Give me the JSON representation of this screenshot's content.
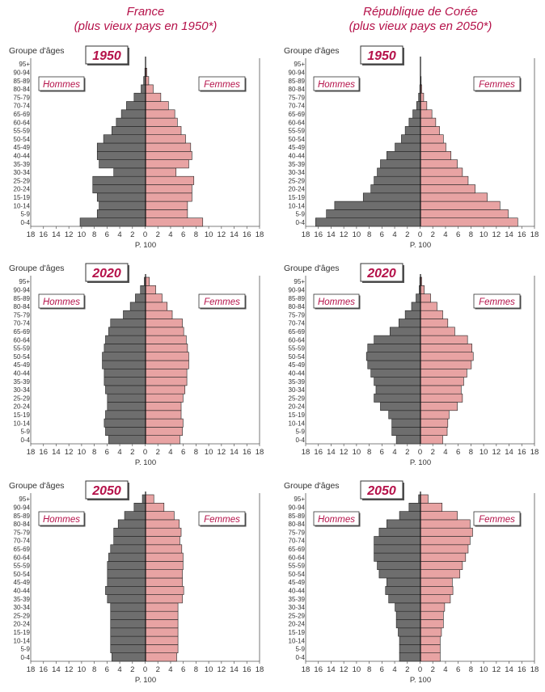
{
  "columns": [
    {
      "title": "France",
      "subtitle": "(plus vieux pays en 1950*)"
    },
    {
      "title": "République de Corée",
      "subtitle": "(plus vieux pays en 2050*)"
    }
  ],
  "labels": {
    "age_group": "Groupe d'âges",
    "men": "Hommes",
    "women": "Femmes",
    "unit": "P. 100"
  },
  "colors": {
    "men": "#6e6e6e",
    "women": "#e8a3a3",
    "accent": "#b5124a"
  },
  "chart_data": [
    {
      "type": "bar",
      "country": "France",
      "year": "1950",
      "categories": [
        "0-4",
        "5-9",
        "10-14",
        "15-19",
        "20-24",
        "25-29",
        "30-34",
        "35-39",
        "40-44",
        "45-49",
        "50-54",
        "55-59",
        "60-64",
        "65-69",
        "70-74",
        "75-79",
        "80-84",
        "85-89",
        "90-94",
        "95+"
      ],
      "series": [
        {
          "name": "Hommes",
          "values": [
            10.3,
            7.6,
            7.3,
            7.6,
            8.3,
            8.3,
            5.0,
            7.3,
            7.6,
            7.6,
            6.6,
            5.3,
            4.6,
            3.8,
            3.0,
            1.8,
            0.7,
            0.3,
            0.1,
            0
          ]
        },
        {
          "name": "Femmes",
          "values": [
            9.0,
            6.6,
            6.6,
            7.3,
            7.3,
            7.6,
            4.8,
            6.8,
            7.3,
            7.1,
            6.3,
            5.6,
            5.0,
            4.6,
            3.6,
            2.4,
            1.2,
            0.5,
            0.2,
            0
          ]
        }
      ],
      "xlim": [
        -18,
        18
      ],
      "xticks": [
        18,
        16,
        14,
        12,
        10,
        8,
        6,
        4,
        2,
        0,
        2,
        4,
        6,
        8,
        10,
        12,
        14,
        16,
        18
      ]
    },
    {
      "type": "bar",
      "country": "République de Corée",
      "year": "1950",
      "categories": [
        "0-4",
        "5-9",
        "10-14",
        "15-19",
        "20-24",
        "25-29",
        "30-34",
        "35-39",
        "40-44",
        "45-49",
        "50-54",
        "55-59",
        "60-64",
        "65-69",
        "70-74",
        "75-79",
        "80-84",
        "85-89",
        "90-94",
        "95+"
      ],
      "series": [
        {
          "name": "Hommes",
          "values": [
            16.5,
            14.8,
            13.5,
            9.0,
            7.8,
            7.3,
            6.8,
            6.3,
            5.3,
            4.0,
            3.0,
            2.4,
            1.8,
            1.2,
            0.6,
            0.3,
            0.1,
            0,
            0,
            0
          ]
        },
        {
          "name": "Femmes",
          "values": [
            15.3,
            13.8,
            12.5,
            10.5,
            8.6,
            7.5,
            6.6,
            5.8,
            4.8,
            4.0,
            3.6,
            3.0,
            2.4,
            1.8,
            1.0,
            0.5,
            0.2,
            0.1,
            0,
            0
          ]
        }
      ],
      "xlim": [
        -18,
        18
      ],
      "xticks": [
        18,
        16,
        14,
        12,
        10,
        8,
        6,
        4,
        2,
        0,
        2,
        4,
        6,
        8,
        10,
        12,
        14,
        16,
        18
      ]
    },
    {
      "type": "bar",
      "country": "France",
      "year": "2020",
      "categories": [
        "0-4",
        "5-9",
        "10-14",
        "15-19",
        "20-24",
        "25-29",
        "30-34",
        "35-39",
        "40-44",
        "45-49",
        "50-54",
        "55-59",
        "60-64",
        "65-69",
        "70-74",
        "75-79",
        "80-84",
        "85-89",
        "90-94",
        "95+"
      ],
      "series": [
        {
          "name": "Hommes",
          "values": [
            5.8,
            6.3,
            6.5,
            6.3,
            6.0,
            6.0,
            6.3,
            6.5,
            6.5,
            6.8,
            6.8,
            6.5,
            6.3,
            5.8,
            5.5,
            3.5,
            2.4,
            1.6,
            0.8,
            0.2
          ]
        },
        {
          "name": "Femmes",
          "values": [
            5.4,
            5.8,
            5.9,
            5.6,
            5.6,
            5.9,
            6.2,
            6.5,
            6.5,
            6.8,
            6.8,
            6.6,
            6.4,
            6.0,
            5.8,
            4.2,
            3.4,
            2.6,
            1.6,
            0.6
          ]
        }
      ],
      "xlim": [
        -18,
        18
      ],
      "xticks": [
        18,
        16,
        14,
        12,
        10,
        8,
        6,
        4,
        2,
        0,
        2,
        4,
        6,
        8,
        10,
        12,
        14,
        16,
        18
      ]
    },
    {
      "type": "bar",
      "country": "République de Corée",
      "year": "2020",
      "categories": [
        "0-4",
        "5-9",
        "10-14",
        "15-19",
        "20-24",
        "25-29",
        "30-34",
        "35-39",
        "40-44",
        "45-49",
        "50-54",
        "55-59",
        "60-64",
        "65-69",
        "70-74",
        "75-79",
        "80-84",
        "85-89",
        "90-94",
        "95+"
      ],
      "series": [
        {
          "name": "Hommes",
          "values": [
            3.8,
            4.5,
            4.5,
            5.0,
            6.3,
            7.3,
            7.0,
            7.3,
            7.8,
            8.3,
            8.5,
            8.3,
            7.3,
            4.8,
            3.4,
            2.4,
            1.4,
            0.7,
            0.2,
            0.1
          ]
        },
        {
          "name": "Femmes",
          "values": [
            3.5,
            4.2,
            4.3,
            4.5,
            5.8,
            6.6,
            6.4,
            6.8,
            7.3,
            8.0,
            8.3,
            8.1,
            7.4,
            5.4,
            4.3,
            3.5,
            2.6,
            1.6,
            0.6,
            0.2
          ]
        }
      ],
      "xlim": [
        -18,
        18
      ],
      "xticks": [
        18,
        16,
        14,
        12,
        10,
        8,
        6,
        4,
        2,
        0,
        2,
        4,
        6,
        8,
        10,
        12,
        14,
        16,
        18
      ]
    },
    {
      "type": "bar",
      "country": "France",
      "year": "2050",
      "categories": [
        "0-4",
        "5-9",
        "10-14",
        "15-19",
        "20-24",
        "25-29",
        "30-34",
        "35-39",
        "40-44",
        "45-49",
        "50-54",
        "55-59",
        "60-64",
        "65-69",
        "70-74",
        "75-79",
        "80-84",
        "85-89",
        "90-94",
        "95+"
      ],
      "series": [
        {
          "name": "Hommes",
          "values": [
            5.3,
            5.5,
            5.5,
            5.5,
            5.5,
            5.5,
            5.5,
            6.0,
            6.3,
            6.0,
            6.0,
            6.0,
            5.8,
            5.5,
            5.0,
            5.0,
            4.3,
            3.3,
            1.8,
            0.5
          ]
        },
        {
          "name": "Femmes",
          "values": [
            4.9,
            5.1,
            5.1,
            5.1,
            5.1,
            5.1,
            5.1,
            5.8,
            6.0,
            5.8,
            5.8,
            5.9,
            5.9,
            5.7,
            5.4,
            5.6,
            5.3,
            4.5,
            2.9,
            1.3
          ]
        }
      ],
      "xlim": [
        -18,
        18
      ],
      "xticks": [
        18,
        16,
        14,
        12,
        10,
        8,
        6,
        4,
        2,
        0,
        2,
        4,
        6,
        8,
        10,
        12,
        14,
        16,
        18
      ]
    },
    {
      "type": "bar",
      "country": "République de Corée",
      "year": "2050",
      "categories": [
        "0-4",
        "5-9",
        "10-14",
        "15-19",
        "20-24",
        "25-29",
        "30-34",
        "35-39",
        "40-44",
        "45-49",
        "50-54",
        "55-59",
        "60-64",
        "65-69",
        "70-74",
        "75-79",
        "80-84",
        "85-89",
        "90-94",
        "95+"
      ],
      "series": [
        {
          "name": "Hommes",
          "values": [
            3.3,
            3.3,
            3.3,
            3.5,
            3.8,
            3.8,
            4.0,
            5.0,
            5.5,
            5.3,
            6.5,
            6.8,
            7.3,
            7.3,
            7.3,
            6.5,
            5.3,
            3.3,
            1.8,
            0.3
          ]
        },
        {
          "name": "Femmes",
          "values": [
            3.1,
            3.1,
            3.1,
            3.3,
            3.6,
            3.6,
            3.8,
            4.7,
            5.1,
            5.0,
            6.2,
            6.6,
            7.1,
            7.5,
            7.8,
            8.2,
            7.8,
            5.8,
            3.4,
            1.2
          ]
        }
      ],
      "xlim": [
        -18,
        18
      ],
      "xticks": [
        18,
        16,
        14,
        12,
        10,
        8,
        6,
        4,
        2,
        0,
        2,
        4,
        6,
        8,
        10,
        12,
        14,
        16,
        18
      ]
    }
  ]
}
